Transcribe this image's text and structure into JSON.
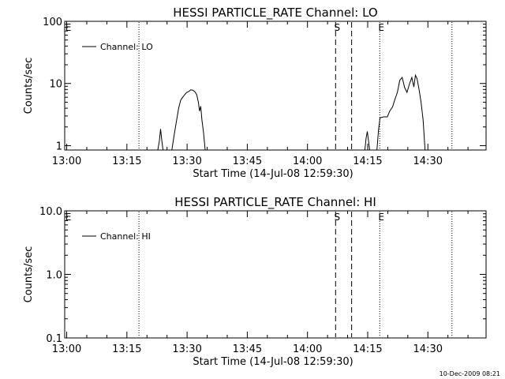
{
  "footer_timestamp": "10-Dec-2009 08:21",
  "chart_data": [
    {
      "type": "line",
      "title": "HESSI PARTICLE_RATE Channel: LO",
      "xlabel": "Start Time (14-Jul-08 12:59:30)",
      "ylabel": "Counts/sec",
      "yscale": "log",
      "ylim": [
        0.85,
        100
      ],
      "xlim_minutes": [
        0,
        105
      ],
      "x_ticks": [
        "13:00",
        "13:15",
        "13:30",
        "13:45",
        "14:00",
        "14:15",
        "14:30"
      ],
      "y_ticks": [
        "1",
        "10",
        "100"
      ],
      "legend": {
        "label": "Channel: LO",
        "position": "top-left"
      },
      "markers": [
        {
          "label": "E",
          "x_min": 0.5,
          "style": "none"
        },
        {
          "label": "",
          "x_min": 18.5,
          "style": "dotted"
        },
        {
          "label": "S",
          "x_min": 67.5,
          "style": "dashed"
        },
        {
          "label": "",
          "x_min": 71.5,
          "style": "dashed"
        },
        {
          "label": "E",
          "x_min": 78.5,
          "style": "dotted"
        },
        {
          "label": "",
          "x_min": 96.5,
          "style": "dotted"
        }
      ],
      "series": [
        {
          "segments": [
            [
              [
                23.2,
                0.85
              ],
              [
                23.6,
                1.2
              ],
              [
                23.9,
                1.85
              ],
              [
                24.2,
                1.2
              ],
              [
                24.5,
                0.85
              ]
            ],
            [
              [
                26.7,
                0.85
              ],
              [
                27.3,
                1.5
              ],
              [
                27.9,
                2.6
              ],
              [
                28.4,
                4.0
              ],
              [
                28.9,
                5.4
              ],
              [
                29.4,
                6.0
              ],
              [
                29.9,
                6.6
              ],
              [
                30.4,
                7.2
              ],
              [
                30.9,
                7.4
              ],
              [
                31.4,
                7.9
              ],
              [
                31.9,
                7.8
              ],
              [
                32.4,
                7.4
              ],
              [
                32.9,
                6.6
              ],
              [
                33.3,
                5.0
              ],
              [
                33.6,
                3.6
              ],
              [
                33.9,
                4.3
              ],
              [
                34.2,
                2.6
              ],
              [
                34.6,
                1.6
              ],
              [
                35.0,
                0.85
              ]
            ],
            [
              [
                74.8,
                0.85
              ],
              [
                75.1,
                1.3
              ],
              [
                75.4,
                1.7
              ],
              [
                75.7,
                1.2
              ],
              [
                76.0,
                0.85
              ]
            ],
            [
              [
                77.8,
                0.85
              ],
              [
                78.2,
                1.8
              ],
              [
                78.6,
                2.8
              ],
              [
                79.5,
                2.9
              ],
              [
                80.4,
                2.9
              ],
              [
                81.0,
                3.6
              ],
              [
                81.7,
                4.2
              ],
              [
                82.3,
                5.6
              ],
              [
                82.9,
                7.2
              ],
              [
                83.5,
                11.3
              ],
              [
                84.1,
                12.5
              ],
              [
                84.7,
                8.6
              ],
              [
                85.3,
                7.2
              ],
              [
                85.9,
                9.8
              ],
              [
                86.5,
                12.5
              ],
              [
                87.0,
                8.8
              ],
              [
                87.4,
                13.6
              ],
              [
                87.8,
                12.0
              ],
              [
                88.3,
                8.0
              ],
              [
                88.8,
                5.0
              ],
              [
                89.3,
                2.6
              ],
              [
                89.8,
                0.85
              ]
            ]
          ]
        }
      ]
    },
    {
      "type": "line",
      "title": "HESSI PARTICLE_RATE Channel: HI",
      "xlabel": "Start Time (14-Jul-08 12:59:30)",
      "ylabel": "Counts/sec",
      "yscale": "log",
      "ylim": [
        0.1,
        10
      ],
      "xlim_minutes": [
        0,
        105
      ],
      "x_ticks": [
        "13:00",
        "13:15",
        "13:30",
        "13:45",
        "14:00",
        "14:15",
        "14:30"
      ],
      "y_ticks": [
        "0.1",
        "1.0",
        "10.0"
      ],
      "legend": {
        "label": "Channel: HI",
        "position": "top-left"
      },
      "markers": [
        {
          "label": "E",
          "x_min": 0.5,
          "style": "none"
        },
        {
          "label": "",
          "x_min": 18.5,
          "style": "dotted"
        },
        {
          "label": "S",
          "x_min": 67.5,
          "style": "dashed"
        },
        {
          "label": "",
          "x_min": 71.5,
          "style": "dashed"
        },
        {
          "label": "E",
          "x_min": 78.5,
          "style": "dotted"
        },
        {
          "label": "",
          "x_min": 96.5,
          "style": "dotted"
        }
      ],
      "series": [
        {
          "segments": []
        }
      ]
    }
  ]
}
